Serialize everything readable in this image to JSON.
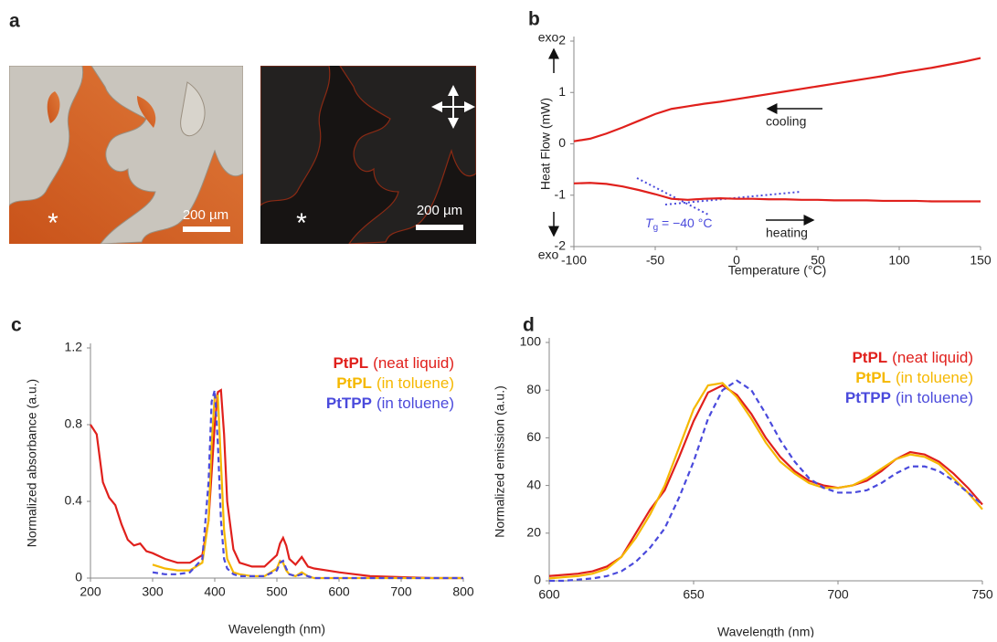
{
  "panel_a": {
    "panel_label": "a",
    "images": [
      {
        "scale_bar": "200 µm",
        "marker": "*"
      },
      {
        "scale_bar": "200 µm",
        "marker": "*"
      }
    ]
  },
  "chart_data": [
    {
      "type": "line",
      "panel_label": "b",
      "x_label": "Temperature (°C)",
      "y_label": "Heat Flow (mW)",
      "y_end_labels": [
        "exo",
        "exo"
      ],
      "annotation": {
        "symbol": "T",
        "subscript": "g",
        "text": " = −40 °C"
      },
      "xlim": [
        -100,
        150
      ],
      "xticks": [
        -100,
        -50,
        0,
        50,
        100,
        150
      ],
      "ylim": [
        -2,
        2
      ],
      "yticks": [
        -2,
        -1,
        0,
        1,
        2
      ],
      "grid": false,
      "x": [
        -100,
        -90,
        -80,
        -70,
        -60,
        -50,
        -40,
        -30,
        -20,
        -10,
        0,
        10,
        20,
        30,
        40,
        50,
        60,
        70,
        80,
        90,
        100,
        110,
        120,
        130,
        140,
        150
      ],
      "series": [
        {
          "name": "cooling",
          "color": "#e0201c",
          "values": [
            0.05,
            0.1,
            0.2,
            0.32,
            0.45,
            0.58,
            0.68,
            0.73,
            0.78,
            0.82,
            0.87,
            0.92,
            0.97,
            1.02,
            1.07,
            1.12,
            1.17,
            1.22,
            1.27,
            1.32,
            1.38,
            1.43,
            1.48,
            1.54,
            1.6,
            1.67
          ]
        },
        {
          "name": "heating",
          "color": "#e0201c",
          "values": [
            -0.77,
            -0.76,
            -0.78,
            -0.83,
            -0.9,
            -0.98,
            -1.07,
            -1.09,
            -1.07,
            -1.06,
            -1.07,
            -1.07,
            -1.08,
            -1.08,
            -1.09,
            -1.09,
            -1.1,
            -1.1,
            -1.1,
            -1.11,
            -1.11,
            -1.11,
            -1.12,
            -1.12,
            -1.12,
            -1.12
          ]
        }
      ]
    },
    {
      "type": "line",
      "panel_label": "c",
      "x_label": "Wavelength (nm)",
      "y_label": "Normalized absorbance (a.u.)",
      "legend": "upper right",
      "xlim": [
        200,
        800
      ],
      "xticks": [
        200,
        300,
        400,
        500,
        600,
        700,
        800
      ],
      "ylim": [
        0,
        1.2
      ],
      "yticks": [
        0,
        0.4,
        0.8,
        1.2
      ],
      "grid": false,
      "x": [
        200,
        210,
        220,
        230,
        240,
        250,
        260,
        270,
        280,
        290,
        300,
        320,
        340,
        360,
        380,
        390,
        395,
        400,
        405,
        410,
        415,
        420,
        430,
        440,
        460,
        480,
        500,
        505,
        510,
        515,
        520,
        530,
        540,
        550,
        560,
        580,
        600,
        650,
        700,
        750,
        800
      ],
      "series": [
        {
          "name": "PtPL",
          "medium": "(neat liquid)",
          "color": "#e0201c",
          "dash": false,
          "values": [
            0.8,
            0.75,
            0.5,
            0.42,
            0.38,
            0.28,
            0.2,
            0.17,
            0.18,
            0.14,
            0.13,
            0.1,
            0.08,
            0.08,
            0.12,
            0.3,
            0.55,
            0.8,
            0.97,
            0.98,
            0.75,
            0.4,
            0.15,
            0.08,
            0.06,
            0.06,
            0.12,
            0.18,
            0.21,
            0.17,
            0.1,
            0.07,
            0.11,
            0.06,
            0.05,
            0.04,
            0.03,
            0.01,
            0.005,
            0,
            0
          ]
        },
        {
          "name": "PtPL",
          "medium": "(in toluene)",
          "color": "#f5b800",
          "dash": false,
          "values": [
            null,
            null,
            null,
            null,
            null,
            null,
            null,
            null,
            null,
            null,
            0.07,
            0.05,
            0.04,
            0.04,
            0.08,
            0.3,
            0.7,
            0.95,
            0.95,
            0.6,
            0.25,
            0.1,
            0.03,
            0.02,
            0.01,
            0.01,
            0.05,
            0.09,
            0.08,
            0.04,
            0.02,
            0.01,
            0.03,
            0.01,
            0,
            0,
            0,
            0,
            0,
            0,
            0
          ]
        },
        {
          "name": "PtTPP",
          "medium": "(in toluene)",
          "color": "#4a4adc",
          "dash": true,
          "values": [
            null,
            null,
            null,
            null,
            null,
            null,
            null,
            null,
            null,
            null,
            0.03,
            0.02,
            0.02,
            0.03,
            0.1,
            0.5,
            0.92,
            0.98,
            0.7,
            0.3,
            0.1,
            0.05,
            0.02,
            0.01,
            0.01,
            0.01,
            0.04,
            0.08,
            0.09,
            0.05,
            0.02,
            0.01,
            0.02,
            0.01,
            0,
            0,
            0,
            0,
            0,
            0,
            0
          ]
        }
      ]
    },
    {
      "type": "line",
      "panel_label": "d",
      "x_label": "Wavelength (nm)",
      "y_label": "Normalized emission (a.u.)",
      "legend": "upper right",
      "xlim": [
        600,
        750
      ],
      "xticks": [
        600,
        650,
        700,
        750
      ],
      "ylim": [
        0,
        100
      ],
      "yticks": [
        0,
        20,
        40,
        60,
        80,
        100
      ],
      "grid": false,
      "x": [
        600,
        605,
        610,
        615,
        620,
        625,
        630,
        635,
        640,
        645,
        650,
        655,
        660,
        665,
        670,
        675,
        680,
        685,
        690,
        695,
        700,
        705,
        710,
        715,
        720,
        725,
        730,
        735,
        740,
        745,
        750
      ],
      "series": [
        {
          "name": "PtPL",
          "medium": "(neat liquid)",
          "color": "#e0201c",
          "dash": false,
          "values": [
            2,
            2.5,
            3,
            4,
            6,
            10,
            20,
            30,
            38,
            52,
            67,
            79,
            82,
            78,
            70,
            60,
            52,
            46,
            42,
            40,
            39,
            40,
            42,
            46,
            51,
            54,
            53,
            50,
            45,
            39,
            32
          ]
        },
        {
          "name": "PtPL",
          "medium": "(in toluene)",
          "color": "#f5b800",
          "dash": false,
          "values": [
            1,
            1.5,
            2,
            3,
            5,
            10,
            18,
            28,
            40,
            56,
            72,
            82,
            83,
            77,
            68,
            58,
            50,
            45,
            41,
            39,
            39,
            40,
            43,
            47,
            51,
            53,
            52,
            49,
            43,
            37,
            30
          ]
        },
        {
          "name": "PtTPP",
          "medium": "(in toluene)",
          "color": "#4a4adc",
          "dash": true,
          "values": [
            0,
            0,
            0.5,
            1,
            2,
            4,
            8,
            14,
            22,
            35,
            50,
            68,
            80,
            84,
            80,
            70,
            59,
            50,
            43,
            39,
            37,
            37,
            38,
            41,
            45,
            48,
            48,
            46,
            42,
            37,
            32
          ]
        }
      ]
    }
  ]
}
